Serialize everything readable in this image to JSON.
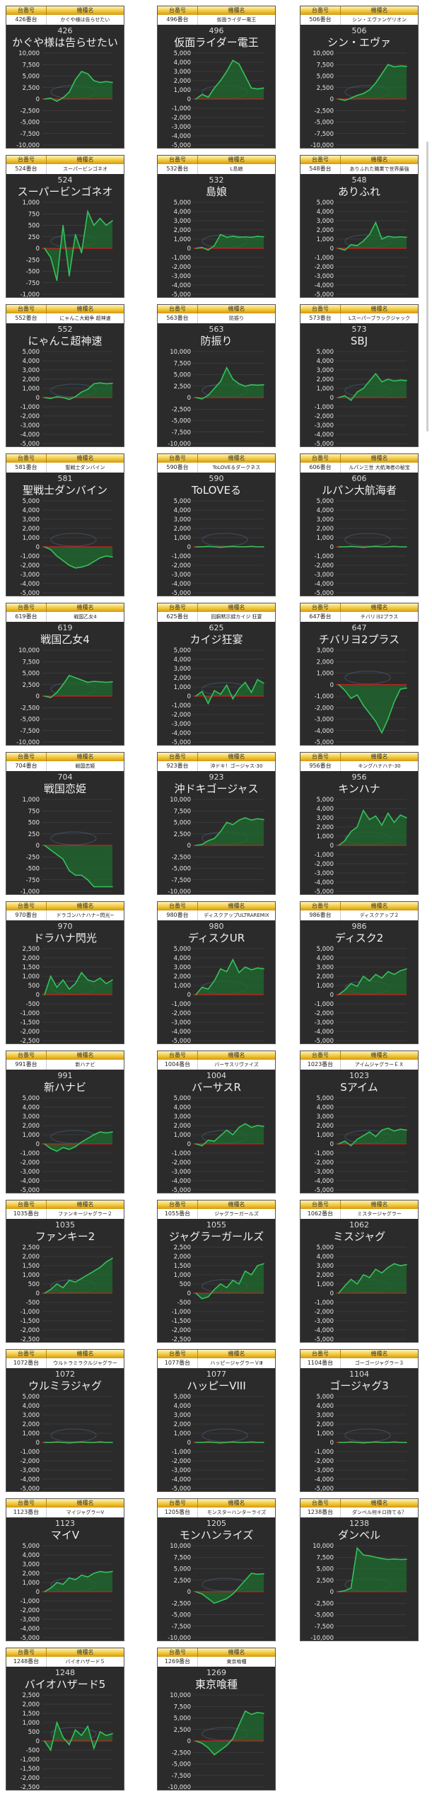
{
  "header_labels": {
    "number": "台番号",
    "name": "機種名"
  },
  "colors": {
    "panel": "#2b2b2b",
    "line": "#35c15c",
    "fill": "#1f6b2e",
    "zero_line": "#d31d1d",
    "header_gold": "#f0c232"
  },
  "chart_data": [
    {
      "type": "area",
      "num_label": "426番台",
      "name_small": "かぐや様は告らせたい",
      "num": "426",
      "title": "かぐや様は告らせたい",
      "yticks": [
        10000,
        7500,
        5000,
        2500,
        0,
        -2500,
        -5000,
        -7500,
        -10000
      ],
      "ylim": [
        -10000,
        10000
      ],
      "values": [
        0,
        200,
        -500,
        300,
        1500,
        4200,
        6000,
        5500,
        4000,
        3600,
        3800,
        3600
      ]
    },
    {
      "type": "area",
      "num_label": "496番台",
      "name_small": "仮面ライダー電王",
      "num": "496",
      "title": "仮面ライダー電王",
      "yticks": [
        5000,
        4000,
        3000,
        2000,
        1000,
        0,
        -1000,
        -2000,
        -3000,
        -4000,
        -5000
      ],
      "ylim": [
        -5000,
        5000
      ],
      "values": [
        0,
        500,
        200,
        1200,
        2000,
        3000,
        4200,
        3800,
        2500,
        1200,
        1100,
        1200
      ]
    },
    {
      "type": "area",
      "num_label": "506番台",
      "name_small": "シン・エヴァンゲリオン",
      "num": "506",
      "title": "シン・エヴァ",
      "yticks": [
        10000,
        7500,
        5000,
        2500,
        0,
        -2500,
        -5000,
        -7500,
        -10000
      ],
      "ylim": [
        -10000,
        10000
      ],
      "values": [
        0,
        -300,
        200,
        800,
        1200,
        2000,
        3500,
        5500,
        7500,
        7000,
        7200,
        7100
      ]
    },
    {
      "type": "area",
      "num_label": "524番台",
      "name_small": "スーパービンゴネオ",
      "num": "524",
      "title": "スーパービンゴネオ",
      "yticks": [
        1000,
        750,
        500,
        250,
        0,
        -250,
        -500,
        -750,
        -1000
      ],
      "ylim": [
        -1000,
        1000
      ],
      "values": [
        0,
        -200,
        -700,
        500,
        -600,
        300,
        -100,
        800,
        500,
        650,
        500,
        600
      ]
    },
    {
      "type": "area",
      "num_label": "532番台",
      "name_small": "L島娘",
      "num": "532",
      "title": "島娘",
      "yticks": [
        5000,
        4000,
        3000,
        2000,
        1000,
        0,
        -1000,
        -2000,
        -3000,
        -4000,
        -5000
      ],
      "ylim": [
        -5000,
        5000
      ],
      "values": [
        0,
        100,
        -200,
        300,
        1500,
        1200,
        1300,
        1200,
        1250,
        1200,
        1300,
        1250
      ]
    },
    {
      "type": "area",
      "num_label": "548番台",
      "name_small": "ありふれた職業で世界最強",
      "num": "548",
      "title": "ありふれ",
      "yticks": [
        5000,
        4000,
        3000,
        2000,
        1000,
        0,
        -1000,
        -2000,
        -3000,
        -4000,
        -5000
      ],
      "ylim": [
        -5000,
        5000
      ],
      "values": [
        0,
        -200,
        400,
        300,
        800,
        1500,
        2800,
        1000,
        1300,
        1200,
        1250,
        1200
      ]
    },
    {
      "type": "area",
      "num_label": "552番台",
      "name_small": "にゃんこ大戦争 超神速",
      "num": "552",
      "title": "にゃんこ超神速",
      "yticks": [
        5000,
        4000,
        3000,
        2000,
        1000,
        0,
        -1000,
        -2000,
        -3000,
        -4000,
        -5000
      ],
      "ylim": [
        -5000,
        5000
      ],
      "values": [
        0,
        -100,
        100,
        0,
        -200,
        100,
        600,
        900,
        1500,
        1600,
        1500,
        1550
      ]
    },
    {
      "type": "area",
      "num_label": "563番台",
      "name_small": "防振り",
      "num": "563",
      "title": "防振り",
      "yticks": [
        10000,
        7500,
        5000,
        2500,
        0,
        -2500,
        -5000,
        -7500,
        -10000
      ],
      "ylim": [
        -10000,
        10000
      ],
      "values": [
        0,
        -300,
        500,
        2000,
        3500,
        6500,
        4000,
        3000,
        2500,
        2800,
        2700,
        2800
      ]
    },
    {
      "type": "area",
      "num_label": "573番台",
      "name_small": "Lスーパーブラックジャック",
      "num": "573",
      "title": "SBJ",
      "yticks": [
        5000,
        4000,
        3000,
        2000,
        1000,
        0,
        -1000,
        -2000,
        -3000,
        -4000,
        -5000
      ],
      "ylim": [
        -5000,
        5000
      ],
      "values": [
        0,
        200,
        -300,
        600,
        1000,
        1800,
        2600,
        1700,
        2000,
        1800,
        1900,
        1850
      ]
    },
    {
      "type": "area",
      "num_label": "581番台",
      "name_small": "聖戦士ダンバイン",
      "num": "581",
      "title": "聖戦士ダンバイン",
      "yticks": [
        5000,
        4000,
        3000,
        2000,
        1000,
        0,
        -1000,
        -2000,
        -3000,
        -4000,
        -5000
      ],
      "ylim": [
        -5000,
        5000
      ],
      "values": [
        0,
        -300,
        -1000,
        -1500,
        -2000,
        -2300,
        -2200,
        -2000,
        -1600,
        -1200,
        -1000,
        -1100
      ]
    },
    {
      "type": "area",
      "num_label": "590番台",
      "name_small": "ToLOVEるダークネス",
      "num": "590",
      "title": "ToLOVEる",
      "yticks": [
        5000,
        4000,
        3000,
        2000,
        1000,
        0,
        -1000,
        -2000,
        -3000,
        -4000,
        -5000
      ],
      "ylim": [
        -5000,
        5000
      ],
      "values": [
        0,
        0,
        50,
        0,
        -50,
        0,
        50,
        0,
        0,
        50,
        0,
        0
      ]
    },
    {
      "type": "area",
      "num_label": "606番台",
      "name_small": "ルパン三世 大航海者の秘宝",
      "num": "606",
      "title": "ルパン大航海者",
      "yticks": [
        5000,
        4000,
        3000,
        2000,
        1000,
        0,
        -1000,
        -2000,
        -3000,
        -4000,
        -5000
      ],
      "ylim": [
        -5000,
        5000
      ],
      "values": [
        0,
        0,
        50,
        0,
        -50,
        0,
        50,
        0,
        0,
        50,
        0,
        0
      ]
    },
    {
      "type": "area",
      "num_label": "619番台",
      "name_small": "戦国乙女4",
      "num": "619",
      "title": "戦国乙女4",
      "yticks": [
        10000,
        7500,
        5000,
        2500,
        0,
        -2500,
        -5000,
        -7500,
        -10000
      ],
      "ylim": [
        -10000,
        10000
      ],
      "values": [
        0,
        -300,
        800,
        2500,
        4500,
        4000,
        3500,
        3000,
        3200,
        3100,
        3000,
        3100
      ]
    },
    {
      "type": "area",
      "num_label": "625番台",
      "name_small": "回胴黙示録カイジ 狂宴",
      "num": "625",
      "title": "カイジ狂宴",
      "yticks": [
        5000,
        4000,
        3000,
        2000,
        1000,
        0,
        -1000,
        -2000,
        -3000,
        -4000,
        -5000
      ],
      "ylim": [
        -5000,
        5000
      ],
      "values": [
        0,
        500,
        -800,
        600,
        200,
        1200,
        -300,
        800,
        1500,
        400,
        1800,
        1400
      ]
    },
    {
      "type": "area",
      "num_label": "647番台",
      "name_small": "チバリヨ2プラス",
      "num": "647",
      "title": "チバリヨ2プラス",
      "yticks": [
        3000,
        2000,
        1000,
        0,
        -1000,
        -2000,
        -3000,
        -4000,
        -5000
      ],
      "ylim": [
        -5000,
        3000
      ],
      "values": [
        0,
        -500,
        -1200,
        -900,
        -1800,
        -2500,
        -3200,
        -4200,
        -3000,
        -1500,
        -400,
        -300
      ]
    },
    {
      "type": "area",
      "num_label": "704番台",
      "name_small": "戦国恋姫",
      "num": "704",
      "title": "戦国恋姫",
      "yticks": [
        1000,
        750,
        500,
        250,
        0,
        -250,
        -500,
        -750,
        -1000
      ],
      "ylim": [
        -1000,
        1000
      ],
      "values": [
        0,
        -100,
        -200,
        -300,
        -550,
        -650,
        -650,
        -750,
        -900,
        -900,
        -900,
        -900
      ]
    },
    {
      "type": "area",
      "num_label": "923番台",
      "name_small": "沖ドキ！ゴージャス-30",
      "num": "923",
      "title": "沖ドキゴージャス",
      "yticks": [
        10000,
        7500,
        5000,
        2500,
        0,
        -2500,
        -5000,
        -7500,
        -10000
      ],
      "ylim": [
        -10000,
        10000
      ],
      "values": [
        0,
        200,
        1000,
        1500,
        3000,
        5000,
        4500,
        5500,
        6000,
        5500,
        5800,
        5600
      ]
    },
    {
      "type": "area",
      "num_label": "956番台",
      "name_small": "キングハナハナ-30",
      "num": "956",
      "title": "キンハナ",
      "yticks": [
        5000,
        4000,
        3000,
        2000,
        1000,
        0,
        -1000,
        -2000,
        -3000,
        -4000,
        -5000
      ],
      "ylim": [
        -5000,
        5000
      ],
      "values": [
        0,
        500,
        1500,
        2000,
        3800,
        2800,
        3200,
        2200,
        3500,
        2500,
        3300,
        3000
      ]
    },
    {
      "type": "area",
      "num_label": "970番台",
      "name_small": "ドラゴンハナハナ~閃光~",
      "num": "970",
      "title": "ドラハナ閃光",
      "yticks": [
        2500,
        2000,
        1500,
        1000,
        500,
        0,
        -500,
        -1000,
        -1500,
        -2000,
        -2500
      ],
      "ylim": [
        -2500,
        2500
      ],
      "values": [
        0,
        1000,
        400,
        800,
        300,
        600,
        1200,
        800,
        700,
        900,
        600,
        800
      ]
    },
    {
      "type": "area",
      "num_label": "980番台",
      "name_small": "ディスクアップULTRAREMIX",
      "num": "980",
      "title": "ディスクUR",
      "yticks": [
        5000,
        4000,
        3000,
        2000,
        1000,
        0,
        -1000,
        -2000,
        -3000,
        -4000,
        -5000
      ],
      "ylim": [
        -5000,
        5000
      ],
      "values": [
        0,
        800,
        600,
        1500,
        2800,
        2500,
        3800,
        2400,
        3000,
        2700,
        2900,
        2800
      ]
    },
    {
      "type": "area",
      "num_label": "986番台",
      "name_small": "ディスクアップ２",
      "num": "986",
      "title": "ディスク2",
      "yticks": [
        5000,
        4000,
        3000,
        2000,
        1000,
        0,
        -1000,
        -2000,
        -3000,
        -4000,
        -5000
      ],
      "ylim": [
        -5000,
        5000
      ],
      "values": [
        0,
        500,
        1200,
        900,
        2000,
        1500,
        2200,
        1800,
        2500,
        2200,
        2600,
        2800
      ]
    },
    {
      "type": "area",
      "num_label": "991番台",
      "name_small": "新ハナビ",
      "num": "991",
      "title": "新ハナビ",
      "yticks": [
        5000,
        4000,
        3000,
        2000,
        1000,
        0,
        -1000,
        -2000,
        -3000,
        -4000,
        -5000
      ],
      "ylim": [
        -5000,
        5000
      ],
      "values": [
        0,
        -500,
        -800,
        -400,
        -600,
        -300,
        200,
        600,
        1000,
        1300,
        1200,
        1300
      ]
    },
    {
      "type": "area",
      "num_label": "1004番台",
      "name_small": "バーサスリヴァイズ",
      "num": "1004",
      "title": "バーサスR",
      "yticks": [
        5000,
        4000,
        3000,
        2000,
        1000,
        0,
        -1000,
        -2000,
        -3000,
        -4000,
        -5000
      ],
      "ylim": [
        -5000,
        5000
      ],
      "values": [
        0,
        -200,
        400,
        300,
        900,
        1500,
        1000,
        1800,
        2200,
        1800,
        2000,
        1900
      ]
    },
    {
      "type": "area",
      "num_label": "1023番台",
      "name_small": "アイムジャグラーＥＸ",
      "num": "1023",
      "title": "Sアイム",
      "yticks": [
        5000,
        4000,
        3000,
        2000,
        1000,
        0,
        -1000,
        -2000,
        -3000,
        -4000,
        -5000
      ],
      "ylim": [
        -5000,
        5000
      ],
      "values": [
        0,
        300,
        -200,
        500,
        900,
        1300,
        800,
        1500,
        1700,
        1400,
        1600,
        1500
      ]
    },
    {
      "type": "area",
      "num_label": "1035番台",
      "name_small": "ファンキージャグラー２",
      "num": "1035",
      "title": "ファンキー2",
      "yticks": [
        2500,
        2000,
        1500,
        1000,
        500,
        0,
        -500,
        -1000,
        -1500,
        -2000,
        -2500
      ],
      "ylim": [
        -2500,
        2500
      ],
      "values": [
        0,
        200,
        500,
        300,
        700,
        600,
        800,
        1000,
        1200,
        1400,
        1700,
        1900
      ]
    },
    {
      "type": "area",
      "num_label": "1055番台",
      "name_small": "ジャグラーガールズ",
      "num": "1055",
      "title": "ジャグラーガールズ",
      "yticks": [
        2500,
        2000,
        1500,
        1000,
        500,
        0,
        -500,
        -1000,
        -1500,
        -2000,
        -2500
      ],
      "ylim": [
        -2500,
        2500
      ],
      "values": [
        0,
        -300,
        -200,
        200,
        500,
        300,
        700,
        500,
        1200,
        1000,
        1500,
        1600
      ]
    },
    {
      "type": "area",
      "num_label": "1062番台",
      "name_small": "ミスタージャグラー",
      "num": "1062",
      "title": "ミスジャグ",
      "yticks": [
        5000,
        4000,
        3000,
        2000,
        1000,
        0,
        -1000,
        -2000,
        -3000,
        -4000,
        -5000
      ],
      "ylim": [
        -5000,
        5000
      ],
      "values": [
        0,
        800,
        1500,
        1000,
        2000,
        1700,
        2600,
        2200,
        2800,
        3200,
        3000,
        3100
      ]
    },
    {
      "type": "area",
      "num_label": "1072番台",
      "name_small": "ウルトラミラクルジャグラー",
      "num": "1072",
      "title": "ウルミラジャグ",
      "yticks": [
        5000,
        4000,
        3000,
        2000,
        1000,
        0,
        -1000,
        -2000,
        -3000,
        -4000,
        -5000
      ],
      "ylim": [
        -5000,
        5000
      ],
      "values": [
        0,
        0,
        50,
        0,
        -50,
        0,
        50,
        0,
        0,
        50,
        0,
        0
      ]
    },
    {
      "type": "area",
      "num_label": "1077番台",
      "name_small": "ハッピージャグラーＶⅢ",
      "num": "1077",
      "title": "ハッピーVIII",
      "yticks": [
        5000,
        4000,
        3000,
        2000,
        1000,
        0,
        -1000,
        -2000,
        -3000,
        -4000,
        -5000
      ],
      "ylim": [
        -5000,
        5000
      ],
      "values": [
        0,
        0,
        50,
        0,
        -50,
        0,
        50,
        0,
        0,
        50,
        0,
        0
      ]
    },
    {
      "type": "area",
      "num_label": "1104番台",
      "name_small": "ゴーゴージャグラー３",
      "num": "1104",
      "title": "ゴージャグ3",
      "yticks": [
        5000,
        4000,
        3000,
        2000,
        1000,
        0,
        -1000,
        -2000,
        -3000,
        -4000,
        -5000
      ],
      "ylim": [
        -5000,
        5000
      ],
      "values": [
        0,
        0,
        50,
        0,
        -50,
        0,
        50,
        0,
        0,
        50,
        0,
        0
      ]
    },
    {
      "type": "area",
      "num_label": "1123番台",
      "name_small": "マイジャグラーV",
      "num": "1123",
      "title": "マイV",
      "yticks": [
        5000,
        4000,
        3000,
        2000,
        1000,
        0,
        -1000,
        -2000,
        -3000,
        -4000,
        -5000
      ],
      "ylim": [
        -5000,
        5000
      ],
      "values": [
        0,
        400,
        1000,
        800,
        1500,
        1300,
        1800,
        1600,
        2000,
        2200,
        2100,
        2200
      ]
    },
    {
      "type": "area",
      "num_label": "1205番台",
      "name_small": "モンスターハンターライズ",
      "num": "1205",
      "title": "モンハンライズ",
      "yticks": [
        10000,
        7500,
        5000,
        2500,
        0,
        -2500,
        -5000,
        -7500,
        -10000
      ],
      "ylim": [
        -10000,
        10000
      ],
      "values": [
        0,
        -500,
        -1500,
        -2500,
        -2000,
        -1500,
        -500,
        1000,
        2500,
        4000,
        3800,
        3900
      ]
    },
    {
      "type": "area",
      "num_label": "1238番台",
      "name_small": "ダンベル何キロ持てる？",
      "num": "1238",
      "title": "ダンベル",
      "yticks": [
        10000,
        7500,
        5000,
        2500,
        0,
        -2500,
        -5000,
        -7500,
        -10000
      ],
      "ylim": [
        -10000,
        10000
      ],
      "values": [
        0,
        200,
        800,
        9500,
        8000,
        7800,
        7500,
        7200,
        7000,
        7100,
        7000,
        7050
      ]
    },
    {
      "type": "area",
      "num_label": "1248番台",
      "name_small": "バイオハザード５",
      "num": "1248",
      "title": "バイオハザード5",
      "yticks": [
        2500,
        2000,
        1500,
        1000,
        500,
        0,
        -500,
        -1000,
        -1500,
        -2000,
        -2500
      ],
      "ylim": [
        -2500,
        2500
      ],
      "values": [
        0,
        -500,
        1000,
        200,
        -200,
        600,
        300,
        800,
        -400,
        500,
        300,
        400
      ]
    },
    {
      "type": "area",
      "num_label": "1269番台",
      "name_small": "東京喰種",
      "num": "1269",
      "title": "東京喰種",
      "yticks": [
        10000,
        7500,
        5000,
        2500,
        0,
        -2500,
        -5000,
        -7500,
        -10000
      ],
      "ylim": [
        -10000,
        10000
      ],
      "values": [
        0,
        -500,
        -1500,
        -3000,
        -2000,
        -1000,
        500,
        3500,
        6500,
        5800,
        6200,
        6000
      ]
    }
  ]
}
